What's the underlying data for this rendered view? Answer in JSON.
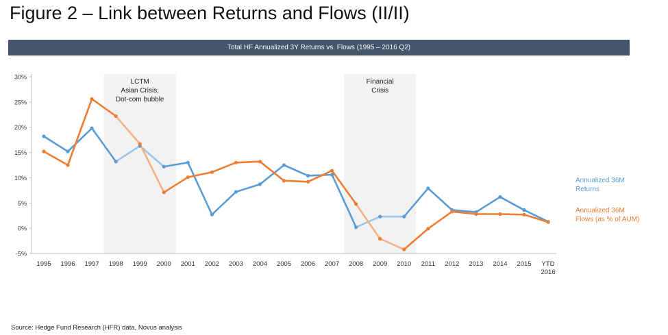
{
  "figure_title": "Figure 2 – Link between Returns and Flows (II/II)",
  "source": "Source: Hedge Fund Research (HFR) data, Novus analysis",
  "colors": {
    "returns": "#5b9bd5",
    "returns_light": "#9dc3e6",
    "flows": "#ed7d31",
    "flows_light": "#f4b183",
    "shade": "#f2f2f2",
    "banner": "#44546a"
  },
  "chart_data": {
    "type": "line",
    "title": "Total HF Annualized 3Y Returns vs. Flows (1995 – 2016 Q2)",
    "xlabel": "",
    "ylabel": "",
    "ylim": [
      -5,
      30
    ],
    "yticks": [
      {
        "value": -5,
        "label": "-5%"
      },
      {
        "value": 0,
        "label": "0%"
      },
      {
        "value": 5,
        "label": "5%"
      },
      {
        "value": 10,
        "label": "10%"
      },
      {
        "value": 15,
        "label": "15%"
      },
      {
        "value": 20,
        "label": "20%"
      },
      {
        "value": 25,
        "label": "25%"
      },
      {
        "value": 30,
        "label": "30%"
      }
    ],
    "categories": [
      "1995",
      "1996",
      "1997",
      "1998",
      "1999",
      "2000",
      "2001",
      "2002",
      "2003",
      "2004",
      "2005",
      "2006",
      "2007",
      "2008",
      "2009",
      "2010",
      "2011",
      "2012",
      "2013",
      "2014",
      "2015",
      "YTD 2016"
    ],
    "series": [
      {
        "name": "Annualized 36M Returns",
        "legend_lines": [
          "Annualized 36M",
          "Returns"
        ],
        "color_key": "returns",
        "values": [
          18.2,
          15.2,
          19.8,
          13.2,
          16.3,
          12.2,
          13.0,
          2.7,
          7.2,
          8.7,
          12.5,
          10.4,
          10.6,
          0.2,
          2.3,
          2.3,
          7.9,
          3.6,
          3.2,
          6.2,
          3.6,
          1.3
        ]
      },
      {
        "name": "Annualized 36M Flows (as % of AUM)",
        "legend_lines": [
          "Annualized 36M",
          "Flows (as % of AUM)"
        ],
        "color_key": "flows",
        "values": [
          15.2,
          12.5,
          25.6,
          22.2,
          16.7,
          7.1,
          10.1,
          11.1,
          13.0,
          13.2,
          9.4,
          9.2,
          11.4,
          4.8,
          -2.1,
          -4.2,
          -0.1,
          3.3,
          2.8,
          2.8,
          2.7,
          1.2
        ]
      }
    ],
    "shaded_periods": [
      {
        "from": "1998",
        "to": "2000",
        "label_lines": [
          "LCTM",
          "Asian Crisis,",
          "Dot-com bubble"
        ]
      },
      {
        "from": "2008",
        "to": "2010",
        "label_lines": [
          "Financial",
          "Crisis"
        ]
      }
    ],
    "legend_position": "right"
  }
}
